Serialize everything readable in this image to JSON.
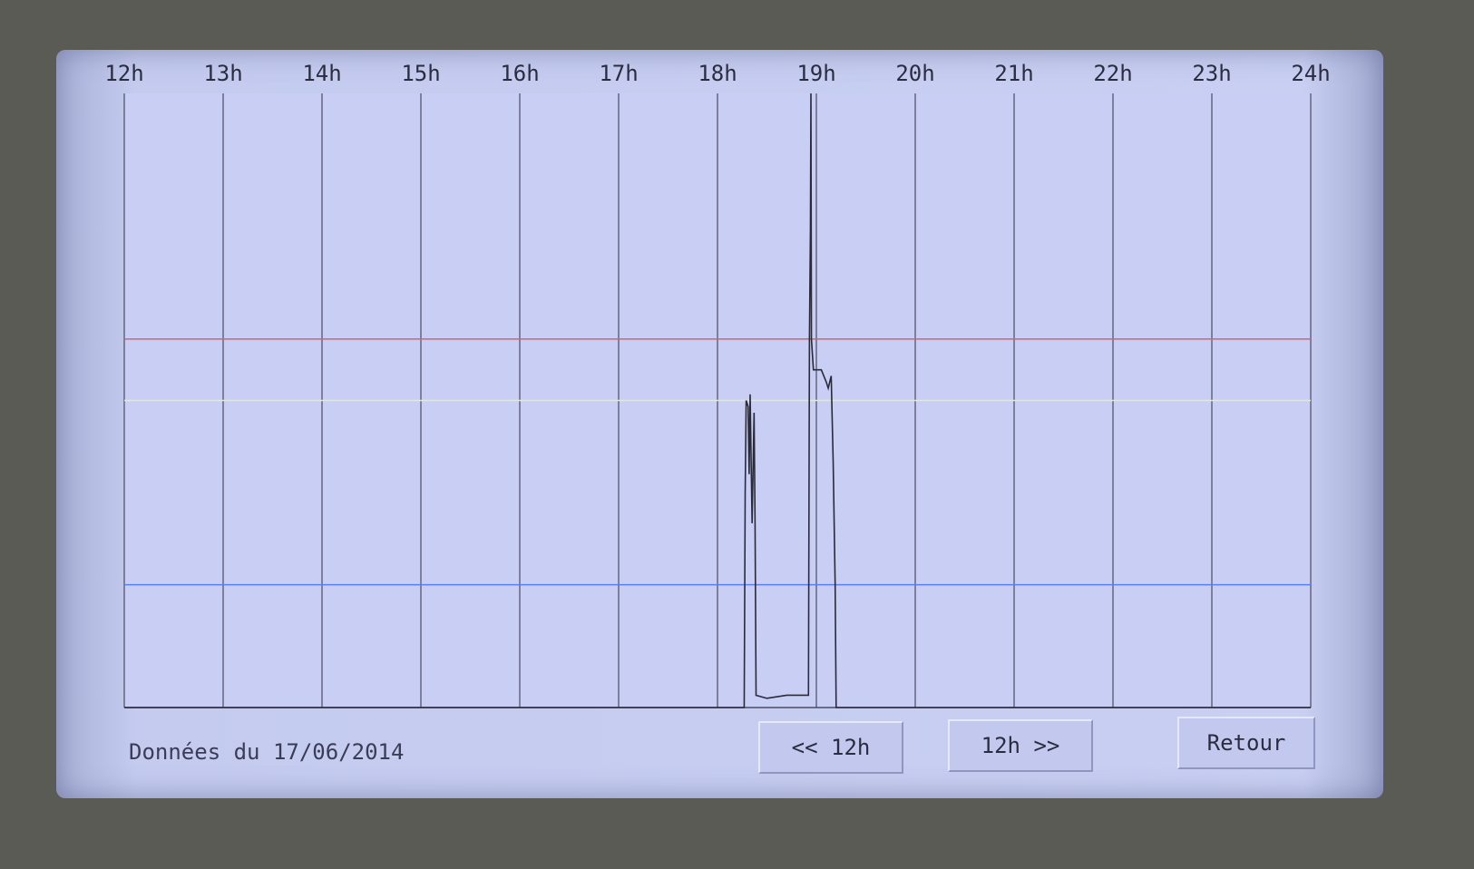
{
  "chart_data": {
    "type": "line",
    "xlim": [
      12,
      24
    ],
    "xticks": [
      {
        "value": 12,
        "label": "12h"
      },
      {
        "value": 13,
        "label": "13h"
      },
      {
        "value": 14,
        "label": "14h"
      },
      {
        "value": 15,
        "label": "15h"
      },
      {
        "value": 16,
        "label": "16h"
      },
      {
        "value": 17,
        "label": "17h"
      },
      {
        "value": 18,
        "label": "18h"
      },
      {
        "value": 19,
        "label": "19h"
      },
      {
        "value": 20,
        "label": "20h"
      },
      {
        "value": 21,
        "label": "21h"
      },
      {
        "value": 22,
        "label": "22h"
      },
      {
        "value": 23,
        "label": "23h"
      },
      {
        "value": 24,
        "label": "24h"
      }
    ],
    "ylim": [
      0,
      100
    ],
    "grid": true,
    "x": [
      12,
      18.27,
      18.28,
      18.29,
      18.31,
      18.32,
      18.33,
      18.35,
      18.37,
      18.38,
      18.39,
      18.5,
      18.7,
      18.9,
      18.92,
      18.93,
      18.94,
      18.945,
      18.95,
      18.97,
      19.05,
      19.1,
      19.12,
      19.15,
      19.17,
      19.19,
      19.2,
      24
    ],
    "series": [
      {
        "color": "#2a2a3a",
        "values": [
          0,
          0,
          35,
          50,
          49,
          38,
          51,
          30,
          48,
          30,
          2,
          1.5,
          2,
          2,
          2,
          60,
          78,
          100,
          60,
          55,
          55,
          53,
          52,
          54,
          40,
          20,
          0,
          0
        ]
      }
    ],
    "hlines": [
      {
        "value": 60,
        "color": "#d9606a"
      },
      {
        "value": 50,
        "color": "#e8ecb0"
      },
      {
        "value": 20,
        "color": "#5b7ef0"
      }
    ]
  },
  "footer": {
    "date_label": "Données du 17/06/2014",
    "buttons": [
      "<< 12h",
      "12h >>",
      "Retour"
    ]
  }
}
